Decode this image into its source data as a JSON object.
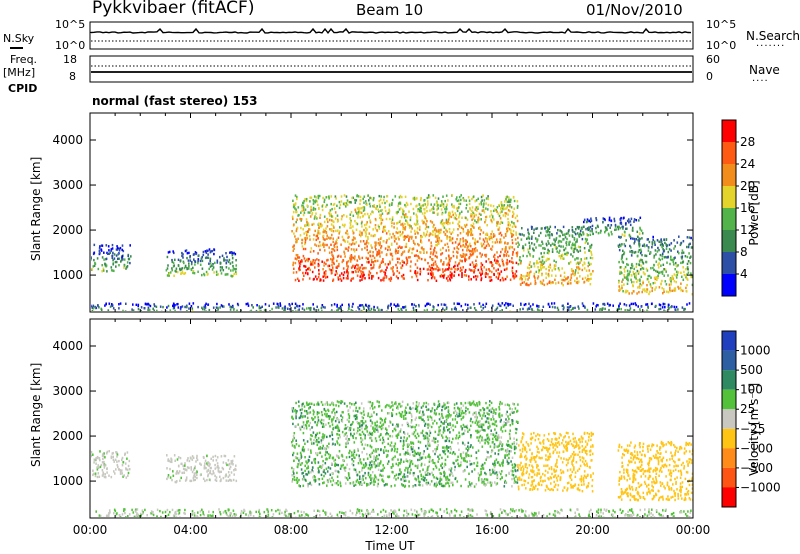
{
  "header": {
    "site": "Pykkvibaer (fitACF)",
    "beam": "Beam 10",
    "date": "01/Nov/2010"
  },
  "left_labels": {
    "nsky": "N.Sky",
    "freq": "Freq.",
    "freq_unit": "[MHz]",
    "cpid": "CPID"
  },
  "right_labels": {
    "nsearch": "N.Search",
    "nave": "Nave"
  },
  "noise_axis": {
    "top": "10^5",
    "bottom": "10^0"
  },
  "freq_axis": {
    "top": "18",
    "bottom": "8"
  },
  "nave_axis": {
    "top": "60",
    "bottom": "0"
  },
  "cpid_text": "normal (fast stereo) 153",
  "colors": {
    "power": [
      "#0000ff",
      "#2e4fa6",
      "#3a8a4f",
      "#52b34a",
      "#e3d32a",
      "#f28c1a",
      "#ff5a14",
      "#ff0000"
    ],
    "velocity": [
      "#1f3fbf",
      "#2e5fa3",
      "#2f8a62",
      "#53c23a",
      "#c8c8c0",
      "#ffc414",
      "#ff8c1a",
      "#ff5514",
      "#ff0000"
    ]
  },
  "chart_data": [
    {
      "type": "heatmap",
      "name": "power",
      "ylabel": "Slant Range [km]",
      "ylim": [
        180,
        4600
      ],
      "yticks": [
        "1000",
        "2000",
        "3000",
        "4000"
      ],
      "xlim": [
        "00:00",
        "24:00"
      ],
      "colorbar": {
        "label": "Power [dB]",
        "ticks": [
          "4",
          "8",
          "12",
          "16",
          "20",
          "24",
          "28"
        ],
        "range": [
          0,
          32
        ]
      },
      "echo_regions": [
        {
          "t_start_h": 0.0,
          "t_end_h": 24.0,
          "range_km": [
            200,
            400
          ],
          "power_db": 6
        },
        {
          "t_start_h": 0.0,
          "t_end_h": 1.6,
          "range_km": [
            1100,
            1700
          ],
          "power_db": 7
        },
        {
          "t_start_h": 3.0,
          "t_end_h": 5.8,
          "range_km": [
            1000,
            1600
          ],
          "power_db": 8
        },
        {
          "t_start_h": 8.0,
          "t_end_h": 17.0,
          "range_km": [
            900,
            2800
          ],
          "power_db": 20
        },
        {
          "t_start_h": 17.0,
          "t_end_h": 20.0,
          "range_km": [
            800,
            2100
          ],
          "power_db": 14
        },
        {
          "t_start_h": 19.5,
          "t_end_h": 22.0,
          "range_km": [
            1900,
            2300
          ],
          "power_db": 8
        },
        {
          "t_start_h": 21.0,
          "t_end_h": 24.0,
          "range_km": [
            600,
            1900
          ],
          "power_db": 12
        }
      ]
    },
    {
      "type": "heatmap",
      "name": "velocity",
      "ylabel": "Slant Range [km]",
      "xlabel": "Time UT",
      "ylim": [
        180,
        4600
      ],
      "yticks": [
        "1000",
        "2000",
        "3000",
        "4000"
      ],
      "xlim": [
        "00:00",
        "24:00"
      ],
      "xticks": [
        "00:00",
        "04:00",
        "08:00",
        "12:00",
        "16:00",
        "20:00",
        "00:00"
      ],
      "colorbar": {
        "label": "Velocity [m s⁻¹]",
        "ticks": [
          "1000",
          "500",
          "100",
          "25",
          "−25",
          "−100",
          "−500",
          "−1000"
        ]
      },
      "echo_regions": [
        {
          "t_start_h": 0.0,
          "t_end_h": 24.0,
          "range_km": [
            200,
            400
          ],
          "velocity_ms": -25
        },
        {
          "t_start_h": 0.0,
          "t_end_h": 1.6,
          "range_km": [
            1100,
            1700
          ],
          "velocity_ms": -50
        },
        {
          "t_start_h": 3.0,
          "t_end_h": 5.8,
          "range_km": [
            1000,
            1600
          ],
          "velocity_ms": -60
        },
        {
          "t_start_h": 8.0,
          "t_end_h": 17.0,
          "range_km": [
            900,
            2800
          ],
          "velocity_ms": 0
        },
        {
          "t_start_h": 17.0,
          "t_end_h": 20.0,
          "range_km": [
            800,
            2100
          ],
          "velocity_ms": -150
        },
        {
          "t_start_h": 21.0,
          "t_end_h": 24.0,
          "range_km": [
            600,
            1900
          ],
          "velocity_ms": -300
        }
      ]
    }
  ]
}
